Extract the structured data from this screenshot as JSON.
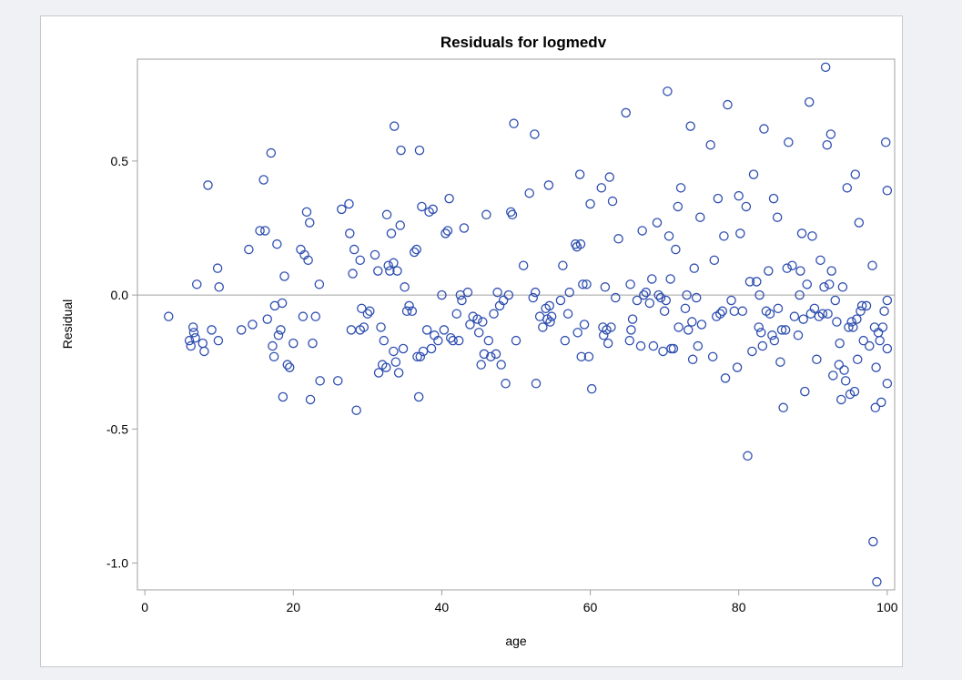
{
  "chart_data": {
    "type": "scatter",
    "title": "Residuals for logmedv",
    "xlabel": "age",
    "ylabel": "Residual",
    "xlim": [
      -1,
      101
    ],
    "ylim": [
      -1.1,
      0.88
    ],
    "xticks": [
      0,
      20,
      40,
      60,
      80,
      100
    ],
    "yticks": [
      -1.0,
      -0.5,
      0.0,
      0.5
    ],
    "ytick_labels": [
      "-1.0",
      "-0.5",
      "0.0",
      "0.5"
    ],
    "reference_line_y": 0,
    "grid": false,
    "marker_color": "#2f4fb0",
    "points": [
      [
        3.2,
        -0.08
      ],
      [
        6.0,
        -0.17
      ],
      [
        6.2,
        -0.19
      ],
      [
        6.5,
        -0.12
      ],
      [
        6.6,
        -0.14
      ],
      [
        6.8,
        -0.16
      ],
      [
        7.0,
        0.04
      ],
      [
        7.8,
        -0.18
      ],
      [
        8.0,
        -0.21
      ],
      [
        8.5,
        0.41
      ],
      [
        9.0,
        -0.13
      ],
      [
        9.8,
        0.1
      ],
      [
        9.9,
        -0.17
      ],
      [
        10.0,
        0.03
      ],
      [
        13.0,
        -0.13
      ],
      [
        14.0,
        0.17
      ],
      [
        14.5,
        -0.11
      ],
      [
        15.5,
        0.24
      ],
      [
        16.0,
        0.43
      ],
      [
        16.2,
        0.24
      ],
      [
        16.5,
        -0.09
      ],
      [
        17.0,
        0.53
      ],
      [
        17.2,
        -0.19
      ],
      [
        17.4,
        -0.23
      ],
      [
        17.5,
        -0.04
      ],
      [
        17.8,
        0.19
      ],
      [
        18.0,
        -0.15
      ],
      [
        18.3,
        -0.13
      ],
      [
        18.5,
        -0.03
      ],
      [
        18.6,
        -0.38
      ],
      [
        18.8,
        0.07
      ],
      [
        19.2,
        -0.26
      ],
      [
        19.5,
        -0.27
      ],
      [
        20.0,
        -0.18
      ],
      [
        21.0,
        0.17
      ],
      [
        21.3,
        -0.08
      ],
      [
        21.5,
        0.15
      ],
      [
        21.8,
        0.31
      ],
      [
        22.0,
        0.13
      ],
      [
        22.2,
        0.27
      ],
      [
        22.3,
        -0.39
      ],
      [
        22.6,
        -0.18
      ],
      [
        23.0,
        -0.08
      ],
      [
        23.5,
        0.04
      ],
      [
        23.6,
        -0.32
      ],
      [
        26.0,
        -0.32
      ],
      [
        26.5,
        0.32
      ],
      [
        27.5,
        0.34
      ],
      [
        27.6,
        0.23
      ],
      [
        27.8,
        -0.13
      ],
      [
        28.0,
        0.08
      ],
      [
        28.2,
        0.17
      ],
      [
        28.5,
        -0.43
      ],
      [
        29.0,
        0.13
      ],
      [
        29.0,
        -0.13
      ],
      [
        29.2,
        -0.05
      ],
      [
        29.5,
        -0.12
      ],
      [
        30.0,
        -0.07
      ],
      [
        30.3,
        -0.06
      ],
      [
        31.0,
        0.15
      ],
      [
        31.4,
        0.09
      ],
      [
        31.5,
        -0.29
      ],
      [
        31.8,
        -0.12
      ],
      [
        32.0,
        -0.26
      ],
      [
        32.2,
        -0.17
      ],
      [
        32.5,
        -0.27
      ],
      [
        32.6,
        0.3
      ],
      [
        32.8,
        0.11
      ],
      [
        33.0,
        0.09
      ],
      [
        33.2,
        0.23
      ],
      [
        33.5,
        0.12
      ],
      [
        33.5,
        -0.21
      ],
      [
        33.6,
        0.63
      ],
      [
        33.8,
        -0.25
      ],
      [
        34.0,
        0.09
      ],
      [
        34.2,
        -0.29
      ],
      [
        34.4,
        0.26
      ],
      [
        34.5,
        0.54
      ],
      [
        34.8,
        -0.2
      ],
      [
        35.0,
        0.03
      ],
      [
        35.3,
        -0.06
      ],
      [
        35.6,
        -0.04
      ],
      [
        36.0,
        -0.06
      ],
      [
        36.3,
        0.16
      ],
      [
        36.6,
        0.17
      ],
      [
        36.7,
        -0.23
      ],
      [
        36.9,
        -0.38
      ],
      [
        37.0,
        0.54
      ],
      [
        37.1,
        -0.23
      ],
      [
        37.3,
        0.33
      ],
      [
        37.5,
        -0.21
      ],
      [
        38.0,
        -0.13
      ],
      [
        38.3,
        0.31
      ],
      [
        38.6,
        -0.2
      ],
      [
        38.8,
        0.32
      ],
      [
        39.0,
        -0.15
      ],
      [
        39.5,
        -0.17
      ],
      [
        40.0,
        0.0
      ],
      [
        40.3,
        -0.13
      ],
      [
        40.5,
        0.23
      ],
      [
        40.8,
        0.24
      ],
      [
        41.0,
        0.36
      ],
      [
        41.2,
        -0.16
      ],
      [
        41.5,
        -0.17
      ],
      [
        42.0,
        -0.07
      ],
      [
        42.3,
        -0.17
      ],
      [
        42.5,
        0.0
      ],
      [
        42.7,
        -0.02
      ],
      [
        43.0,
        0.25
      ],
      [
        43.5,
        0.01
      ],
      [
        43.8,
        -0.11
      ],
      [
        44.2,
        -0.08
      ],
      [
        44.8,
        -0.09
      ],
      [
        45.0,
        -0.14
      ],
      [
        45.3,
        -0.26
      ],
      [
        45.5,
        -0.1
      ],
      [
        45.7,
        -0.22
      ],
      [
        46.0,
        0.3
      ],
      [
        46.3,
        -0.17
      ],
      [
        46.6,
        -0.23
      ],
      [
        47.0,
        -0.07
      ],
      [
        47.3,
        -0.22
      ],
      [
        47.5,
        0.01
      ],
      [
        47.8,
        -0.04
      ],
      [
        48.0,
        -0.26
      ],
      [
        48.3,
        -0.02
      ],
      [
        48.6,
        -0.33
      ],
      [
        49.0,
        0.0
      ],
      [
        49.3,
        0.31
      ],
      [
        49.5,
        0.3
      ],
      [
        49.7,
        0.64
      ],
      [
        50.0,
        -0.17
      ],
      [
        51.0,
        0.11
      ],
      [
        51.8,
        0.38
      ],
      [
        52.3,
        -0.01
      ],
      [
        52.5,
        0.6
      ],
      [
        52.6,
        0.01
      ],
      [
        52.7,
        -0.33
      ],
      [
        53.2,
        -0.08
      ],
      [
        53.6,
        -0.12
      ],
      [
        54.0,
        -0.05
      ],
      [
        54.2,
        -0.09
      ],
      [
        54.4,
        0.41
      ],
      [
        54.5,
        -0.04
      ],
      [
        54.6,
        -0.1
      ],
      [
        54.8,
        -0.08
      ],
      [
        56.0,
        -0.02
      ],
      [
        56.3,
        0.11
      ],
      [
        56.6,
        -0.17
      ],
      [
        57.0,
        -0.07
      ],
      [
        57.2,
        0.01
      ],
      [
        58.0,
        0.19
      ],
      [
        58.2,
        0.18
      ],
      [
        58.3,
        -0.14
      ],
      [
        58.6,
        0.45
      ],
      [
        58.7,
        0.19
      ],
      [
        58.8,
        -0.23
      ],
      [
        59.0,
        0.04
      ],
      [
        59.2,
        -0.11
      ],
      [
        59.5,
        0.04
      ],
      [
        59.8,
        -0.23
      ],
      [
        60.0,
        0.34
      ],
      [
        60.2,
        -0.35
      ],
      [
        61.5,
        0.4
      ],
      [
        61.7,
        -0.12
      ],
      [
        61.8,
        -0.15
      ],
      [
        62.0,
        0.03
      ],
      [
        62.2,
        -0.13
      ],
      [
        62.4,
        -0.18
      ],
      [
        62.6,
        0.44
      ],
      [
        62.8,
        -0.12
      ],
      [
        63.0,
        0.35
      ],
      [
        63.4,
        -0.01
      ],
      [
        63.8,
        0.21
      ],
      [
        64.8,
        0.68
      ],
      [
        65.3,
        -0.17
      ],
      [
        65.4,
        0.04
      ],
      [
        65.5,
        -0.13
      ],
      [
        65.7,
        -0.09
      ],
      [
        66.3,
        -0.02
      ],
      [
        66.8,
        -0.19
      ],
      [
        67.0,
        0.24
      ],
      [
        67.2,
        0.0
      ],
      [
        67.5,
        0.01
      ],
      [
        68.0,
        -0.03
      ],
      [
        68.3,
        0.06
      ],
      [
        68.5,
        -0.19
      ],
      [
        69.0,
        0.27
      ],
      [
        69.2,
        0.0
      ],
      [
        69.5,
        -0.01
      ],
      [
        69.8,
        -0.21
      ],
      [
        70.0,
        -0.06
      ],
      [
        70.2,
        -0.02
      ],
      [
        70.4,
        0.76
      ],
      [
        70.6,
        0.22
      ],
      [
        70.8,
        0.06
      ],
      [
        70.9,
        -0.2
      ],
      [
        71.2,
        -0.2
      ],
      [
        71.5,
        0.17
      ],
      [
        71.8,
        0.33
      ],
      [
        71.9,
        -0.12
      ],
      [
        72.2,
        0.4
      ],
      [
        72.8,
        -0.05
      ],
      [
        73.0,
        0.0
      ],
      [
        73.2,
        -0.13
      ],
      [
        73.5,
        0.63
      ],
      [
        73.7,
        -0.1
      ],
      [
        73.8,
        -0.24
      ],
      [
        74.0,
        0.1
      ],
      [
        74.3,
        -0.01
      ],
      [
        74.5,
        -0.19
      ],
      [
        74.8,
        0.29
      ],
      [
        75.0,
        -0.11
      ],
      [
        76.2,
        0.56
      ],
      [
        76.5,
        -0.23
      ],
      [
        76.7,
        0.13
      ],
      [
        77.0,
        -0.08
      ],
      [
        77.2,
        0.36
      ],
      [
        77.5,
        -0.07
      ],
      [
        77.8,
        -0.06
      ],
      [
        78.0,
        0.22
      ],
      [
        78.2,
        -0.31
      ],
      [
        78.5,
        0.71
      ],
      [
        79.0,
        -0.02
      ],
      [
        79.4,
        -0.06
      ],
      [
        79.8,
        -0.27
      ],
      [
        80.0,
        0.37
      ],
      [
        80.2,
        0.23
      ],
      [
        80.5,
        -0.06
      ],
      [
        81.0,
        0.33
      ],
      [
        81.2,
        -0.6
      ],
      [
        81.5,
        0.05
      ],
      [
        81.8,
        -0.21
      ],
      [
        82.0,
        0.45
      ],
      [
        82.4,
        0.05
      ],
      [
        82.7,
        -0.12
      ],
      [
        82.8,
        0.0
      ],
      [
        83.0,
        -0.14
      ],
      [
        83.2,
        -0.19
      ],
      [
        83.4,
        0.62
      ],
      [
        83.7,
        -0.06
      ],
      [
        84.0,
        0.09
      ],
      [
        84.2,
        -0.07
      ],
      [
        84.5,
        -0.15
      ],
      [
        84.7,
        0.36
      ],
      [
        84.8,
        -0.17
      ],
      [
        85.2,
        0.29
      ],
      [
        85.3,
        -0.05
      ],
      [
        85.6,
        -0.25
      ],
      [
        85.8,
        -0.13
      ],
      [
        86.0,
        -0.42
      ],
      [
        86.3,
        -0.13
      ],
      [
        86.5,
        0.1
      ],
      [
        86.7,
        0.57
      ],
      [
        87.2,
        0.11
      ],
      [
        87.5,
        -0.08
      ],
      [
        88.0,
        -0.15
      ],
      [
        88.2,
        0.0
      ],
      [
        88.3,
        0.09
      ],
      [
        88.5,
        0.23
      ],
      [
        88.7,
        -0.09
      ],
      [
        88.9,
        -0.36
      ],
      [
        89.2,
        0.04
      ],
      [
        89.5,
        0.72
      ],
      [
        89.7,
        -0.07
      ],
      [
        89.9,
        0.22
      ],
      [
        90.2,
        -0.05
      ],
      [
        90.5,
        -0.24
      ],
      [
        90.8,
        -0.08
      ],
      [
        91.0,
        0.13
      ],
      [
        91.3,
        -0.07
      ],
      [
        91.5,
        0.03
      ],
      [
        91.7,
        0.85
      ],
      [
        91.9,
        0.56
      ],
      [
        92.0,
        -0.07
      ],
      [
        92.2,
        0.04
      ],
      [
        92.4,
        0.6
      ],
      [
        92.5,
        0.09
      ],
      [
        92.7,
        -0.3
      ],
      [
        93.0,
        -0.02
      ],
      [
        93.2,
        -0.1
      ],
      [
        93.5,
        -0.26
      ],
      [
        93.6,
        -0.18
      ],
      [
        93.8,
        -0.39
      ],
      [
        94.0,
        0.03
      ],
      [
        94.2,
        -0.28
      ],
      [
        94.4,
        -0.32
      ],
      [
        94.6,
        0.4
      ],
      [
        94.8,
        -0.12
      ],
      [
        95.0,
        -0.37
      ],
      [
        95.2,
        -0.1
      ],
      [
        95.4,
        -0.12
      ],
      [
        95.6,
        -0.36
      ],
      [
        95.7,
        0.45
      ],
      [
        95.9,
        -0.09
      ],
      [
        96.0,
        -0.24
      ],
      [
        96.2,
        0.27
      ],
      [
        96.4,
        -0.06
      ],
      [
        96.6,
        -0.04
      ],
      [
        96.8,
        -0.17
      ],
      [
        97.2,
        -0.04
      ],
      [
        97.6,
        -0.19
      ],
      [
        98.0,
        0.11
      ],
      [
        98.1,
        -0.92
      ],
      [
        98.3,
        -0.12
      ],
      [
        98.4,
        -0.42
      ],
      [
        98.5,
        -0.27
      ],
      [
        98.6,
        -1.07
      ],
      [
        98.8,
        -0.14
      ],
      [
        99.0,
        -0.17
      ],
      [
        99.2,
        -0.4
      ],
      [
        99.4,
        -0.12
      ],
      [
        99.6,
        -0.06
      ],
      [
        99.8,
        0.57
      ],
      [
        100.0,
        0.39
      ],
      [
        100.0,
        -0.33
      ],
      [
        100.0,
        -0.2
      ],
      [
        100.0,
        -0.02
      ]
    ]
  }
}
